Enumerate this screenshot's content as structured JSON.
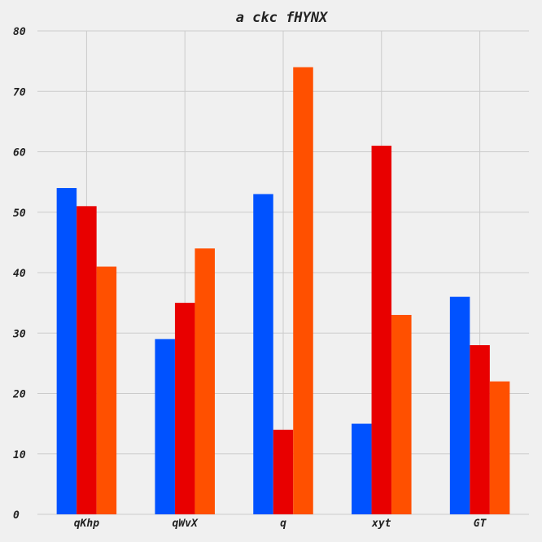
{
  "chart_data": {
    "type": "bar",
    "title": "a ckc fHYNX",
    "xlabel": "",
    "ylabel": "",
    "categories": [
      "qKhp",
      "qWvX",
      "q",
      "xyt",
      "GT"
    ],
    "series": [
      {
        "color": "#0052ff",
        "values": [
          54,
          29,
          53,
          15,
          36
        ]
      },
      {
        "color": "#e80000",
        "values": [
          51,
          35,
          14,
          61,
          28
        ]
      },
      {
        "color": "#ff5000",
        "values": [
          41,
          44,
          74,
          33,
          22
        ]
      }
    ],
    "ylim": [
      0,
      80
    ],
    "yticks": [
      0,
      10,
      20,
      30,
      40,
      50,
      60,
      70,
      80
    ],
    "grid": true,
    "legend": "none"
  }
}
